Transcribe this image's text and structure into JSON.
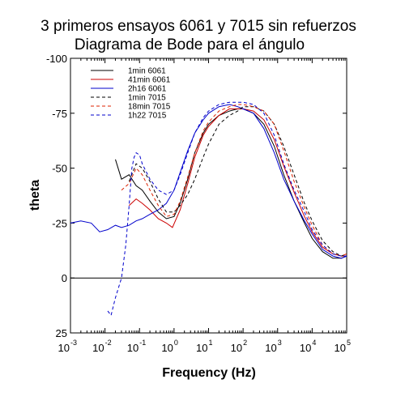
{
  "chart_data": {
    "type": "line",
    "title": "3 primeros ensayos 6061 y 7015 sin refuerzos",
    "subtitle": "Diagrama de Bode para el ángulo",
    "xlabel": "Frequency (Hz)",
    "ylabel": "theta",
    "xscale": "log",
    "xlim": [
      0.001,
      100000
    ],
    "ylim": [
      25,
      -100
    ],
    "y_inverted": true,
    "grid": false,
    "legend_position": "top-left",
    "x_ticks": [
      {
        "base": "10",
        "exp": "-3",
        "value": 0.001
      },
      {
        "base": "10",
        "exp": "-2",
        "value": 0.01
      },
      {
        "base": "10",
        "exp": "-1",
        "value": 0.1
      },
      {
        "base": "10",
        "exp": "0",
        "value": 1
      },
      {
        "base": "10",
        "exp": "1",
        "value": 10
      },
      {
        "base": "10",
        "exp": "2",
        "value": 100
      },
      {
        "base": "10",
        "exp": "3",
        "value": 1000
      },
      {
        "base": "10",
        "exp": "4",
        "value": 10000
      },
      {
        "base": "10",
        "exp": "5",
        "value": 100000
      }
    ],
    "y_ticks": [
      {
        "label": "-100",
        "value": -100
      },
      {
        "label": "-75",
        "value": -75
      },
      {
        "label": "-50",
        "value": -50
      },
      {
        "label": "-25",
        "value": -25
      },
      {
        "label": "0",
        "value": 0
      },
      {
        "label": "25",
        "value": 25
      }
    ],
    "reference_line": 0,
    "series": [
      {
        "name": "1min 6061",
        "color": "#000000",
        "dash": "solid",
        "x": [
          0.02,
          0.03,
          0.05,
          0.08,
          0.12,
          0.2,
          0.35,
          0.6,
          1.0,
          1.5,
          2.5,
          4,
          7,
          10,
          20,
          40,
          70,
          100,
          200,
          400,
          800,
          1500,
          3000,
          6000,
          10000,
          20000,
          40000,
          70000,
          100000
        ],
        "y": [
          -54,
          -45,
          -47,
          -42,
          -40,
          -35,
          -30,
          -27,
          -28,
          -34,
          -45,
          -57,
          -66,
          -70,
          -74,
          -76,
          -77,
          -77,
          -75,
          -70,
          -60,
          -47,
          -35,
          -25,
          -18,
          -12,
          -9,
          -9,
          -10
        ]
      },
      {
        "name": "41min 6061",
        "color": "#cc0000",
        "dash": "solid",
        "x": [
          0.05,
          0.08,
          0.12,
          0.2,
          0.35,
          0.6,
          0.9,
          1.5,
          2.5,
          4,
          7,
          10,
          20,
          40,
          70,
          100,
          200,
          400,
          800,
          1500,
          3000,
          6000,
          10000,
          20000,
          40000,
          70000,
          100000
        ],
        "y": [
          -33,
          -36,
          -34,
          -31,
          -27,
          -25,
          -23,
          -31,
          -43,
          -55,
          -65,
          -69,
          -74,
          -77,
          -77,
          -77,
          -76,
          -72,
          -63,
          -51,
          -39,
          -28,
          -21,
          -14,
          -11,
          -10,
          -10
        ]
      },
      {
        "name": "2h16 6061",
        "color": "#0000cc",
        "dash": "solid",
        "x": [
          0.001,
          0.002,
          0.004,
          0.007,
          0.012,
          0.02,
          0.03,
          0.05,
          0.08,
          0.12,
          0.2,
          0.35,
          0.6,
          1.0,
          1.5,
          2.5,
          4,
          7,
          10,
          20,
          40,
          70,
          100,
          200,
          400,
          800,
          1500,
          3000,
          6000,
          10000,
          20000,
          40000,
          70000,
          100000
        ],
        "y": [
          -25,
          -26,
          -25,
          -21,
          -22,
          -24,
          -23,
          -24,
          -26,
          -27,
          -29,
          -31,
          -34,
          -40,
          -48,
          -58,
          -66,
          -72,
          -75,
          -78,
          -79,
          -78,
          -77,
          -75,
          -68,
          -57,
          -45,
          -35,
          -26,
          -20,
          -13,
          -10,
          -9,
          -10
        ]
      },
      {
        "name": "1min 7015",
        "color": "#000000",
        "dash": "dashed",
        "x": [
          0.05,
          0.08,
          0.12,
          0.2,
          0.35,
          0.6,
          1.0,
          1.5,
          2.5,
          4,
          7,
          10,
          20,
          40,
          70,
          100,
          200,
          400,
          800,
          1500,
          3000,
          6000,
          10000,
          20000,
          40000,
          70000,
          100000
        ],
        "y": [
          -44,
          -52,
          -50,
          -44,
          -36,
          -30,
          -30,
          -33,
          -38,
          -45,
          -55,
          -61,
          -70,
          -74,
          -76,
          -78,
          -78,
          -76,
          -70,
          -60,
          -47,
          -34,
          -26,
          -17,
          -12,
          -10,
          -11
        ]
      },
      {
        "name": "18min 7015",
        "color": "#dd2200",
        "dash": "dashed",
        "x": [
          0.03,
          0.05,
          0.08,
          0.12,
          0.2,
          0.35,
          0.6,
          1.0,
          1.5,
          2.5,
          4,
          7,
          10,
          20,
          40,
          70,
          100,
          200,
          400,
          800,
          1500,
          3000,
          6000,
          10000,
          20000,
          40000,
          70000,
          100000
        ],
        "y": [
          -40,
          -43,
          -50,
          -47,
          -40,
          -33,
          -28,
          -29,
          -35,
          -46,
          -57,
          -67,
          -71,
          -76,
          -78,
          -79,
          -79,
          -78,
          -76,
          -70,
          -58,
          -44,
          -32,
          -24,
          -15,
          -11,
          -10,
          -11
        ]
      },
      {
        "name": "1h22 7015",
        "color": "#0000cc",
        "dash": "dashed",
        "x": [
          0.012,
          0.015,
          0.02,
          0.03,
          0.04,
          0.05,
          0.06,
          0.07,
          0.08,
          0.1,
          0.12,
          0.2,
          0.35,
          0.6,
          1.0,
          1.5,
          2.5,
          4,
          7,
          10,
          20,
          40,
          70,
          100,
          200,
          400,
          800,
          1500,
          3000,
          6000,
          10000,
          20000,
          40000,
          70000,
          100000
        ],
        "y": [
          15,
          17,
          9,
          0,
          -15,
          -33,
          -50,
          -55,
          -57,
          -56,
          -52,
          -45,
          -40,
          -38,
          -40,
          -47,
          -57,
          -66,
          -73,
          -76,
          -79,
          -80,
          -80,
          -80,
          -79,
          -75,
          -65,
          -52,
          -40,
          -30,
          -22,
          -15,
          -11,
          -10,
          -10
        ]
      }
    ]
  }
}
